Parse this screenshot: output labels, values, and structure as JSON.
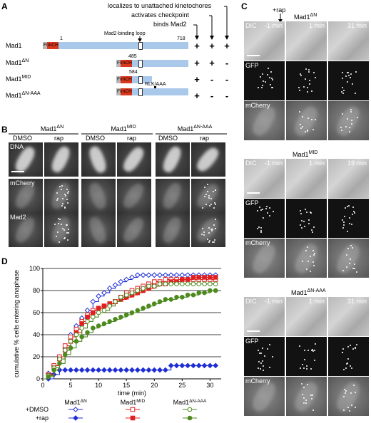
{
  "panelA": {
    "label": "A",
    "legend_lines": [
      "localizes to unattached kinetochores",
      "activates checkpoint",
      "binds Mad2"
    ],
    "loop_label": "Mad2-binding loop",
    "frb": "FRB",
    "mch": "mCH",
    "constructs": [
      {
        "name": "Mad1",
        "sup": "",
        "start": "1",
        "end": "718",
        "marks": [
          "+",
          "+",
          "+"
        ]
      },
      {
        "name": "Mad1",
        "sup": "ΔN",
        "start": "485",
        "end": "",
        "marks": [
          "+",
          "+",
          "-"
        ]
      },
      {
        "name": "Mad1",
        "sup": "MID",
        "start": "584",
        "end": "",
        "marks": [
          "+",
          "-",
          "-"
        ]
      },
      {
        "name": "Mad1",
        "sup": "ΔN-AAA",
        "start": "RLK/AAA",
        "end": "",
        "marks": [
          "+",
          "-",
          "-"
        ]
      }
    ]
  },
  "panelB": {
    "label": "B",
    "groups": [
      {
        "name": "Mad1",
        "sup": "ΔN"
      },
      {
        "name": "Mad1",
        "sup": "MID"
      },
      {
        "name": "Mad1",
        "sup": "ΔN-AAA"
      }
    ],
    "conditions": [
      "DMSO",
      "rap"
    ],
    "rows": [
      "DNA",
      "mCherry",
      "Mad2"
    ]
  },
  "panelC": {
    "label": "C",
    "rap_label": "+rap",
    "blocks": [
      {
        "name": "Mad1",
        "sup": "ΔN",
        "times": [
          "-1 min",
          "1 min",
          "31 min"
        ]
      },
      {
        "name": "Mad1",
        "sup": "MID",
        "times": [
          "-1 min",
          "1 min",
          "19 min"
        ]
      },
      {
        "name": "Mad1",
        "sup": "ΔN-AAA",
        "times": [
          "-1 min",
          "1 min",
          "31 min"
        ]
      }
    ],
    "rows": [
      "DIC",
      "GFP",
      "mCherry"
    ]
  },
  "panelD": {
    "label": "D",
    "legend": {
      "dmso": "+DMSO",
      "rap": "+rap",
      "groups": [
        {
          "name": "Mad1",
          "sup": "ΔN",
          "color": "#1f2fd6"
        },
        {
          "name": "Mad1",
          "sup": "MID",
          "color": "#e02020"
        },
        {
          "name": "Mad1",
          "sup": "ΔN-AAA",
          "color": "#4c8a1e"
        }
      ]
    }
  },
  "chart_data": {
    "type": "line",
    "xlabel": "time (min)",
    "ylabel": "cumulative % cells entering anaphase",
    "xlim": [
      0,
      32
    ],
    "ylim": [
      0,
      100
    ],
    "xticks": [
      0,
      5,
      10,
      15,
      20,
      25,
      30
    ],
    "yticks": [
      0,
      20,
      40,
      60,
      80,
      100
    ],
    "series": [
      {
        "name": "Mad1ΔN +DMSO",
        "color": "#1f2fd6",
        "marker": "diamond-open",
        "x": [
          1,
          2,
          3,
          4,
          5,
          6,
          7,
          8,
          9,
          10,
          11,
          12,
          13,
          14,
          15,
          16,
          17,
          18,
          19,
          20,
          21,
          22,
          23,
          24,
          25,
          26,
          27,
          28,
          29,
          30,
          31
        ],
        "y": [
          5,
          12,
          20,
          28,
          40,
          48,
          55,
          62,
          70,
          75,
          78,
          82,
          85,
          88,
          90,
          92,
          94,
          94,
          94,
          94,
          94,
          94,
          94,
          94,
          94,
          94,
          94,
          94,
          94,
          94,
          94
        ]
      },
      {
        "name": "Mad1ΔN +rap",
        "color": "#1f2fd6",
        "marker": "diamond-filled",
        "x": [
          1,
          2,
          3,
          4,
          5,
          6,
          7,
          8,
          9,
          10,
          11,
          12,
          13,
          14,
          15,
          16,
          17,
          18,
          19,
          20,
          21,
          22,
          23,
          24,
          25,
          26,
          27,
          28,
          29,
          30,
          31
        ],
        "y": [
          0,
          4,
          8,
          8,
          8,
          8,
          8,
          8,
          8,
          8,
          8,
          8,
          8,
          8,
          8,
          8,
          8,
          8,
          8,
          8,
          8,
          8,
          12,
          12,
          12,
          12,
          12,
          12,
          12,
          12,
          12
        ]
      },
      {
        "name": "Mad1MID +DMSO",
        "color": "#e02020",
        "marker": "square-open",
        "x": [
          1,
          2,
          3,
          4,
          5,
          6,
          7,
          8,
          9,
          10,
          11,
          12,
          13,
          14,
          15,
          16,
          17,
          18,
          19,
          20,
          21,
          22,
          23,
          24,
          25,
          26,
          27,
          28,
          29,
          30,
          31
        ],
        "y": [
          4,
          12,
          20,
          30,
          38,
          45,
          52,
          58,
          62,
          64,
          66,
          68,
          70,
          74,
          78,
          80,
          82,
          84,
          86,
          88,
          88,
          90,
          90,
          90,
          90,
          90,
          90,
          90,
          90,
          90,
          90
        ]
      },
      {
        "name": "Mad1MID +rap",
        "color": "#e02020",
        "marker": "square-filled",
        "x": [
          1,
          2,
          3,
          4,
          5,
          6,
          7,
          8,
          9,
          10,
          11,
          12,
          13,
          14,
          15,
          16,
          17,
          18,
          19,
          20,
          21,
          22,
          23,
          24,
          25,
          26,
          27,
          28,
          29,
          30,
          31
        ],
        "y": [
          3,
          10,
          18,
          26,
          34,
          42,
          50,
          56,
          60,
          64,
          66,
          68,
          70,
          72,
          74,
          76,
          78,
          80,
          82,
          84,
          86,
          86,
          88,
          88,
          90,
          90,
          92,
          92,
          92,
          92,
          92
        ]
      },
      {
        "name": "Mad1ΔN-AAA +DMSO",
        "color": "#4c8a1e",
        "marker": "circle-open",
        "x": [
          1,
          2,
          3,
          4,
          5,
          6,
          7,
          8,
          9,
          10,
          11,
          12,
          13,
          14,
          15,
          16,
          17,
          18,
          19,
          20,
          21,
          22,
          23,
          24,
          25,
          26,
          27,
          28,
          29,
          30,
          31
        ],
        "y": [
          3,
          10,
          18,
          26,
          34,
          40,
          46,
          52,
          56,
          60,
          62,
          66,
          70,
          74,
          76,
          78,
          80,
          82,
          84,
          84,
          86,
          86,
          86,
          86,
          86,
          86,
          86,
          86,
          86,
          86,
          86
        ]
      },
      {
        "name": "Mad1ΔN-AAA +rap",
        "color": "#4c8a1e",
        "marker": "circle-filled",
        "x": [
          1,
          2,
          3,
          4,
          5,
          6,
          7,
          8,
          9,
          10,
          11,
          12,
          13,
          14,
          15,
          16,
          17,
          18,
          19,
          20,
          21,
          22,
          23,
          24,
          25,
          26,
          27,
          28,
          29,
          30,
          31
        ],
        "y": [
          2,
          8,
          14,
          22,
          28,
          34,
          38,
          42,
          46,
          48,
          50,
          52,
          54,
          56,
          58,
          60,
          62,
          64,
          66,
          68,
          70,
          72,
          72,
          74,
          74,
          76,
          76,
          78,
          78,
          80,
          80
        ]
      }
    ]
  }
}
